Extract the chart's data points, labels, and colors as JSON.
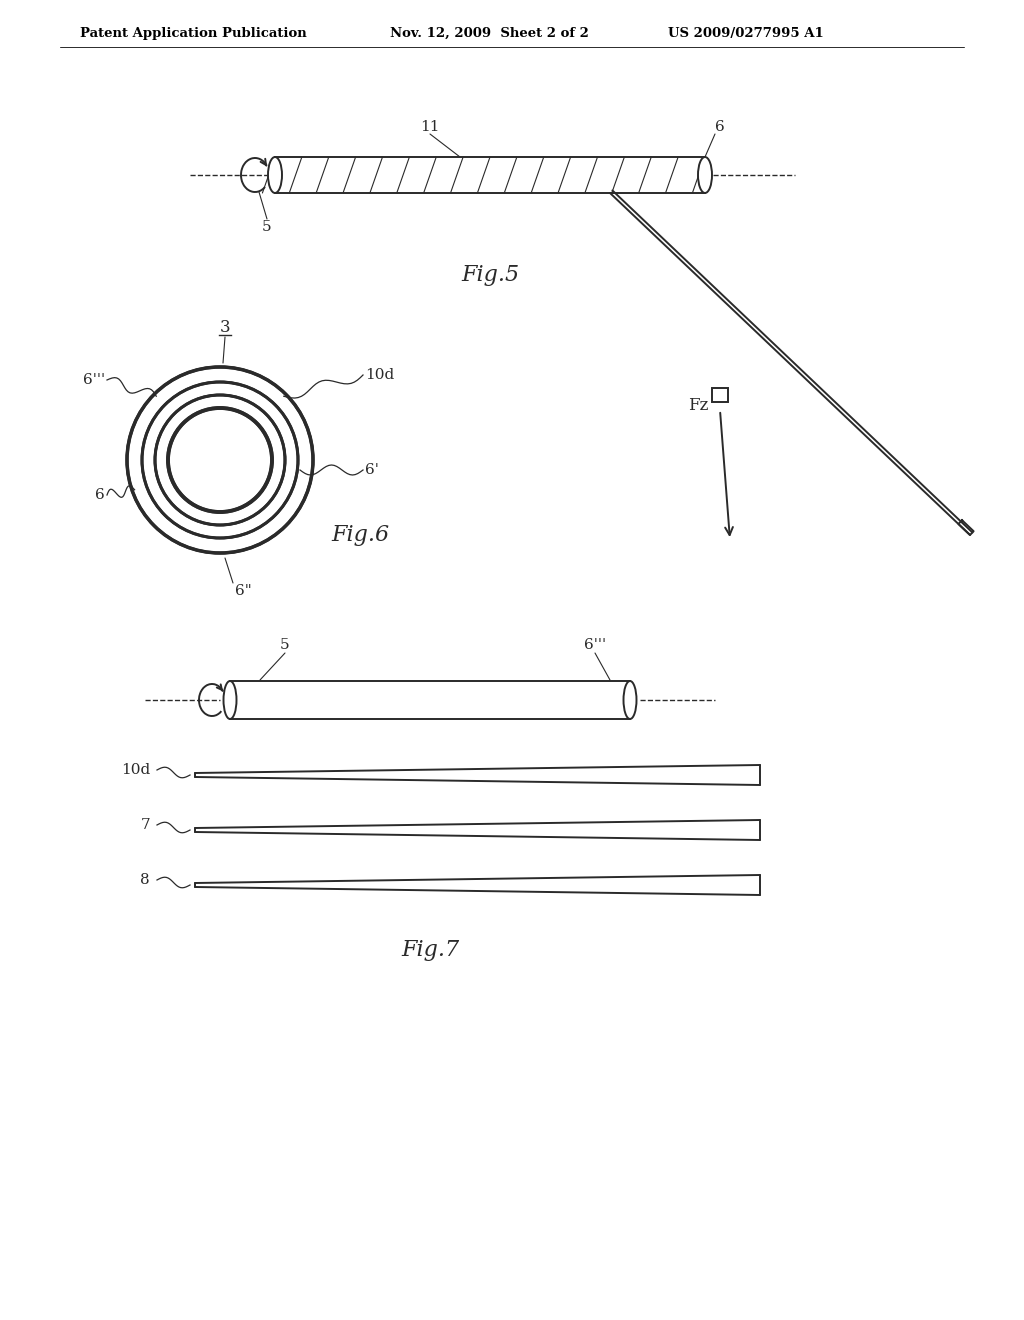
{
  "bg_color": "#ffffff",
  "line_color": "#2a2a2a",
  "header_left": "Patent Application Publication",
  "header_mid": "Nov. 12, 2009  Sheet 2 of 2",
  "header_right": "US 2009/0277995 A1",
  "fig5_label": "Fig.5",
  "fig6_label": "Fig.6",
  "fig7_label": "Fig.7"
}
